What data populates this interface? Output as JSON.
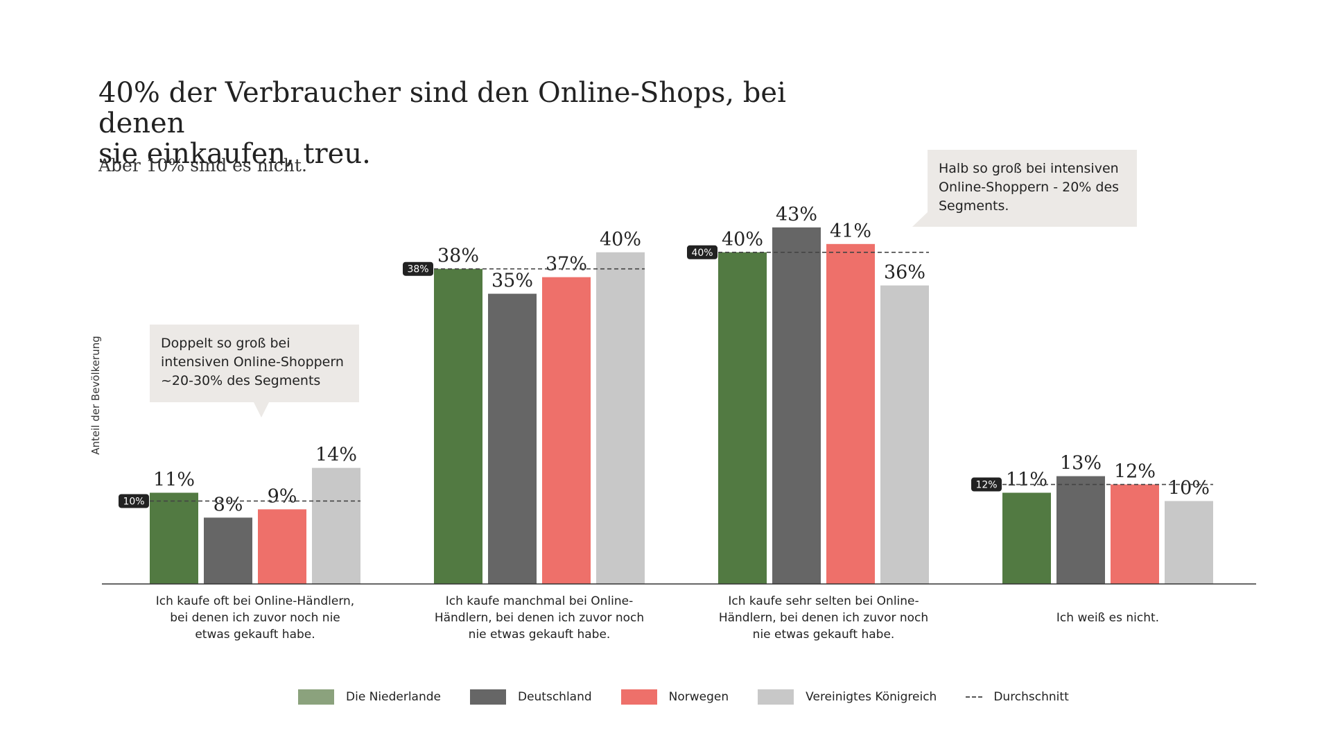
{
  "title_line1": "40% der Verbraucher sind den Online-Shops, bei denen",
  "title_line2": "sie einkaufen, treu.",
  "subtitle": "Aber 10% sind es nicht.",
  "callouts": {
    "left": [
      "Doppelt so groß bei",
      "intensiven Online-Shoppern",
      "~20-30% des Segments"
    ],
    "right": [
      "Halb so groß bei intensiven",
      "Online-Shoppern - 20% des",
      "Segments."
    ]
  },
  "legend": {
    "nl": "Die Niederlande",
    "de": "Deutschland",
    "no": "Norwegen",
    "uk": "Vereinigtes Königreich",
    "avg": "Durchschnitt"
  },
  "colors": {
    "nl": "#527A42",
    "nl_legend": "#8BA27D",
    "de": "#666666",
    "no": "#EE706A",
    "uk": "#C8C8C8"
  },
  "chart_data": {
    "type": "bar",
    "title": "40% der Verbraucher sind den Online-Shops, bei denen sie einkaufen, treu.",
    "ylabel": "Anteil der Bevölkerung",
    "ylim": [
      0,
      45
    ],
    "categories": [
      [
        "Ich kaufe oft bei Online-Händlern,",
        "bei denen ich zuvor noch nie",
        "etwas gekauft habe."
      ],
      [
        "Ich kaufe manchmal bei Online-",
        "Händlern, bei denen ich zuvor noch",
        "nie etwas gekauft habe."
      ],
      [
        "Ich kaufe sehr selten bei Online-",
        "Händlern, bei denen ich zuvor noch",
        "nie etwas gekauft habe."
      ],
      [
        "Ich weiß es nicht."
      ]
    ],
    "series": [
      {
        "name": "Die Niederlande",
        "key": "nl",
        "values": [
          11,
          38,
          40,
          11
        ]
      },
      {
        "name": "Deutschland",
        "key": "de",
        "values": [
          8,
          35,
          43,
          13
        ]
      },
      {
        "name": "Norwegen",
        "key": "no",
        "values": [
          9,
          37,
          41,
          12
        ]
      },
      {
        "name": "Vereinigtes Königreich",
        "key": "uk",
        "values": [
          14,
          40,
          36,
          10
        ]
      }
    ],
    "value_labels": [
      [
        "11%",
        "8%",
        "9%",
        "14%"
      ],
      [
        "38%",
        "35%",
        "37%",
        "40%"
      ],
      [
        "40%",
        "43%",
        "41%",
        "36%"
      ],
      [
        "11%",
        "13%",
        "12%",
        "10%"
      ]
    ],
    "averages": [
      10,
      38,
      40,
      12
    ],
    "average_labels": [
      "10%",
      "38%",
      "40%",
      "12%"
    ]
  }
}
